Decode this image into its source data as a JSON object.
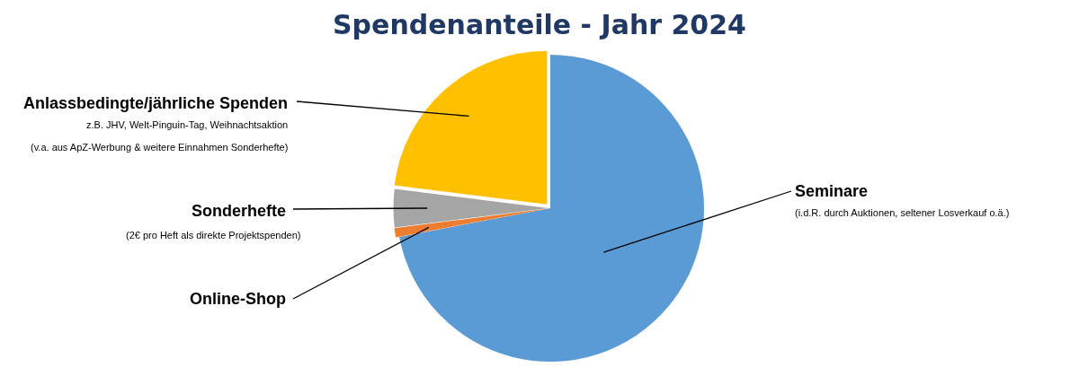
{
  "chart_data": {
    "type": "pie",
    "title": "Spendenanteile - Jahr 2024",
    "categories": [
      "Seminare",
      "Online-Shop",
      "Sonderhefte",
      "Anlassbedingte/jährliche Spenden"
    ],
    "values": [
      72,
      1,
      4,
      23
    ],
    "colors": [
      "#5b9bd5",
      "#ed7d31",
      "#a5a5a5",
      "#ffc000"
    ],
    "annotations": [
      "(i.d.R. durch Auktionen, seltener Losverkauf o.ä.)",
      "z.B. JHV, Welt-Pinguin-Tag, Weihnachtsaktion",
      "(v.a. aus ApZ-Werbung & weitere Einnahmen Sonderhefte)",
      "(2€ pro Heft als direkte Projektspenden)"
    ],
    "legend": false
  }
}
